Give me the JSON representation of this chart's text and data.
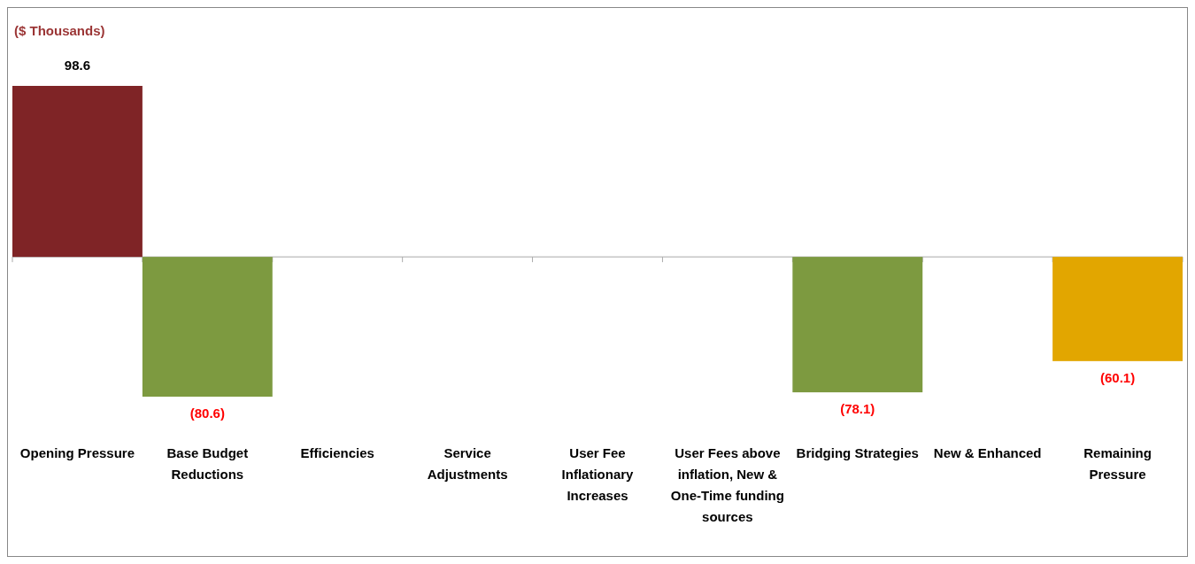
{
  "chart_data": {
    "type": "bar",
    "ylabel": "($ Thousands)",
    "categories": [
      "Opening Pressure",
      "Base Budget Reductions",
      "Efficiencies",
      "Service Adjustments",
      "User Fee Inflationary Increases",
      "User Fees above inflation, New & One-Time funding sources",
      "Bridging Strategies",
      "New & Enhanced",
      "Remaining Pressure"
    ],
    "values": [
      98.6,
      -80.6,
      0,
      0,
      0,
      0,
      -78.1,
      0,
      -60.1
    ],
    "colors": [
      "#7f2426",
      "#7d9a40",
      null,
      null,
      null,
      null,
      "#7d9a40",
      null,
      "#e2a600"
    ],
    "value_labels": [
      "98.6",
      "(80.6)",
      null,
      null,
      null,
      null,
      "(78.1)",
      null,
      "(60.1)"
    ]
  }
}
